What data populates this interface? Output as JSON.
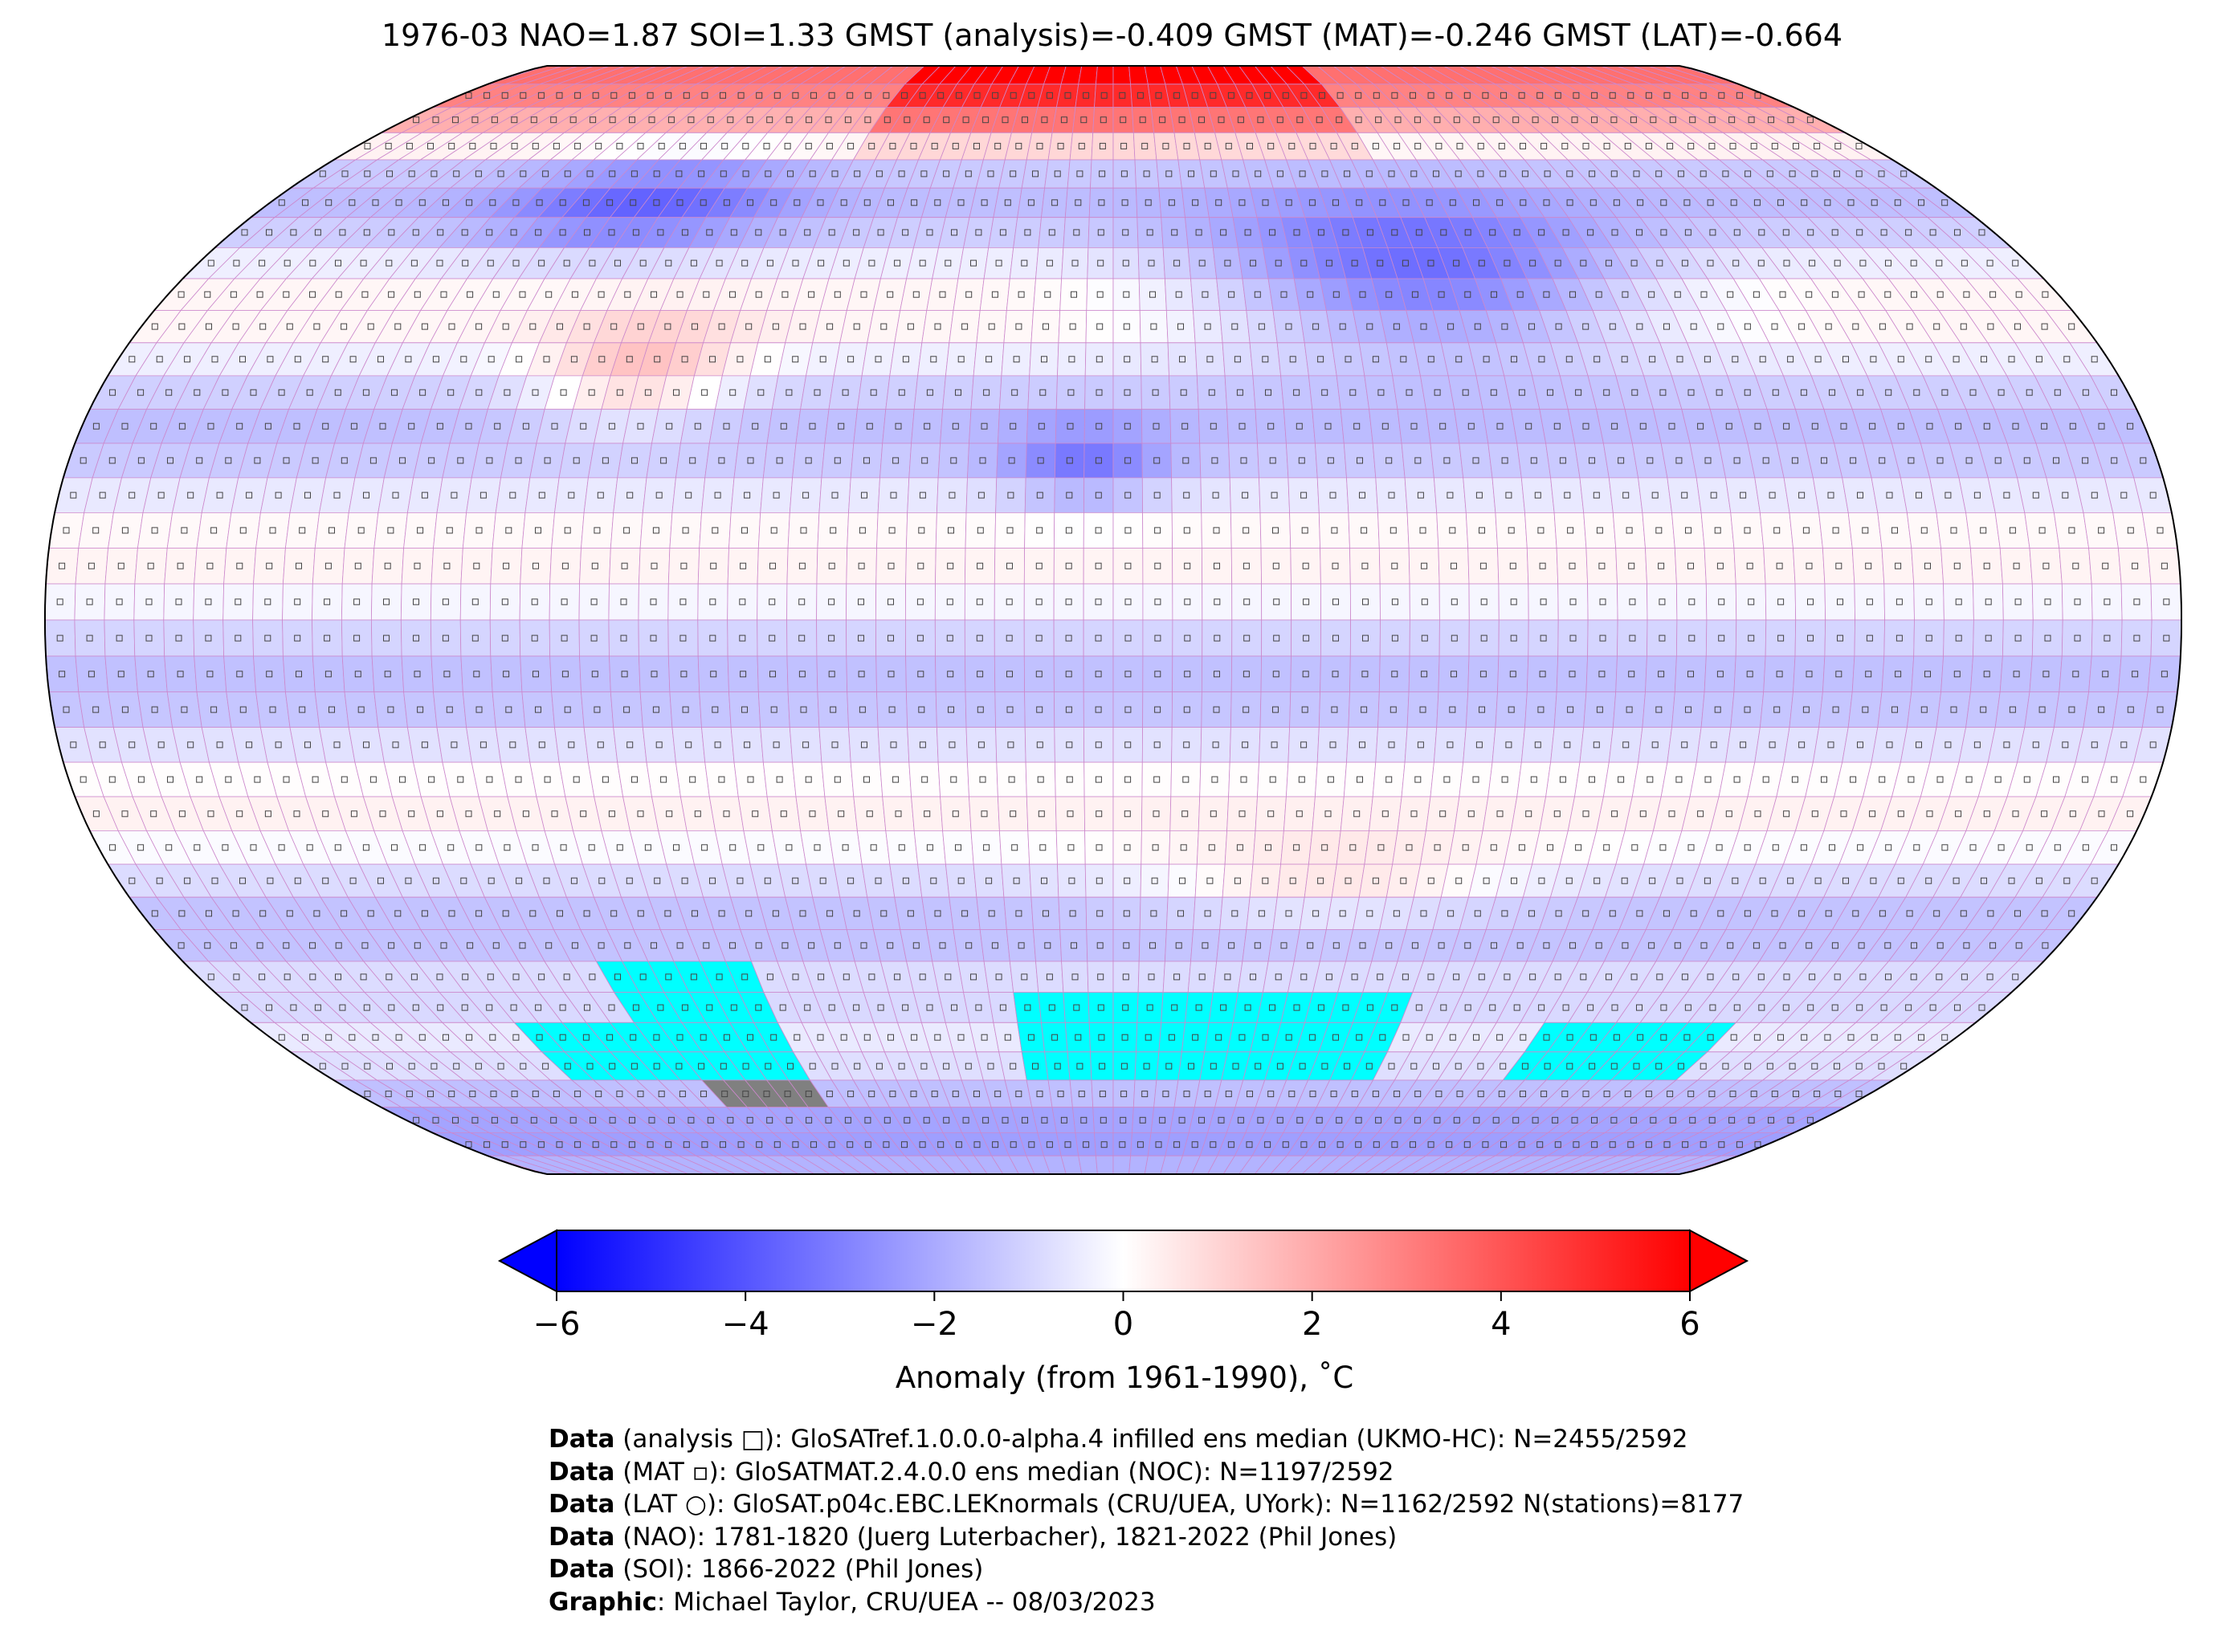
{
  "title": "1976-03 NAO=1.87 SOI=1.33 GMST (analysis)=-0.409 GMST (MAT)=-0.246 GMST (LAT)=-0.664",
  "colorbar": {
    "label": "Anomaly (from 1961-1990), ˚C",
    "ticks": [
      "−6",
      "−4",
      "−2",
      "0",
      "2",
      "4",
      "6"
    ],
    "tick_values": [
      -6,
      -4,
      -2,
      0,
      2,
      4,
      6
    ],
    "vmin": -6,
    "vmax": 6,
    "colors": {
      "low": "#0000ff",
      "mid": "#ffffff",
      "high": "#ff0000"
    }
  },
  "map": {
    "projection": "Robinson",
    "missing_color": "#00ffff",
    "no_data_color": "#808080",
    "grid_color": "#cc88cc"
  },
  "footer": {
    "lines": [
      {
        "label": "Data",
        "text": " (analysis □): GloSATref.1.0.0.0-alpha.4 infilled ens median (UKMO-HC): N=2455/2592"
      },
      {
        "label": "Data",
        "text": " (MAT ▫): GloSATMAT.2.4.0.0 ens median (NOC): N=1197/2592"
      },
      {
        "label": "Data",
        "text": " (LAT ○): GloSAT.p04c.EBC.LEKnormals (CRU/UEA, UYork): N=1162/2592 N(stations)=8177"
      },
      {
        "label": "Data",
        "text": " (NAO): 1781-1820 (Juerg Luterbacher), 1821-2022 (Phil Jones)"
      },
      {
        "label": "Data",
        "text": " (SOI): 1866-2022 (Phil Jones)"
      },
      {
        "label": "Graphic",
        "text": ": Michael Taylor, CRU/UEA -- 08/03/2023"
      }
    ]
  }
}
